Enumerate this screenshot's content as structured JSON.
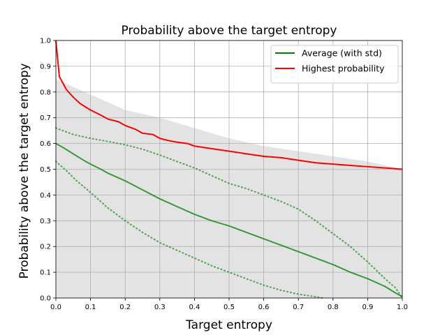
{
  "chart_data": {
    "type": "line",
    "title": "Probability above the target entropy",
    "xlabel": "Target entropy",
    "ylabel": "Probability above the target entropy",
    "xlim": [
      0,
      1
    ],
    "ylim": [
      0,
      1
    ],
    "xticks": [
      "0.0",
      "0.1",
      "0.2",
      "0.3",
      "0.4",
      "0.5",
      "0.6",
      "0.7",
      "0.8",
      "0.9",
      "1.0"
    ],
    "yticks": [
      "0.0",
      "0.1",
      "0.2",
      "0.3",
      "0.4",
      "0.5",
      "0.6",
      "0.7",
      "0.8",
      "0.9",
      "1.0"
    ],
    "grid": true,
    "legend_position": "top-right",
    "series": [
      {
        "name": "Average (with std)",
        "color": "#008000",
        "style": "solid",
        "x": [
          0.0,
          0.02,
          0.05,
          0.08,
          0.1,
          0.13,
          0.15,
          0.2,
          0.25,
          0.3,
          0.35,
          0.4,
          0.45,
          0.5,
          0.55,
          0.6,
          0.65,
          0.7,
          0.75,
          0.8,
          0.85,
          0.9,
          0.95,
          0.98,
          1.0
        ],
        "values": [
          0.6,
          0.585,
          0.56,
          0.535,
          0.52,
          0.5,
          0.485,
          0.455,
          0.42,
          0.385,
          0.355,
          0.325,
          0.3,
          0.28,
          0.255,
          0.23,
          0.205,
          0.18,
          0.155,
          0.13,
          0.1,
          0.075,
          0.045,
          0.02,
          0.005
        ]
      },
      {
        "name": "",
        "color": "#008000",
        "style": "dotted",
        "x": [
          0.0,
          0.05,
          0.1,
          0.15,
          0.2,
          0.25,
          0.3,
          0.35,
          0.4,
          0.45,
          0.5,
          0.55,
          0.6,
          0.65,
          0.7,
          0.75,
          0.8,
          0.85,
          0.9,
          0.95,
          0.98,
          1.0
        ],
        "values": [
          0.66,
          0.635,
          0.62,
          0.608,
          0.595,
          0.578,
          0.555,
          0.53,
          0.505,
          0.475,
          0.445,
          0.425,
          0.4,
          0.375,
          0.345,
          0.3,
          0.25,
          0.2,
          0.14,
          0.075,
          0.04,
          0.0
        ]
      },
      {
        "name": "",
        "color": "#008000",
        "style": "dotted",
        "x": [
          0.0,
          0.03,
          0.06,
          0.1,
          0.15,
          0.2,
          0.25,
          0.3,
          0.35,
          0.4,
          0.45,
          0.5,
          0.55,
          0.6,
          0.65,
          0.7,
          0.75,
          0.77
        ],
        "values": [
          0.53,
          0.495,
          0.455,
          0.41,
          0.35,
          0.3,
          0.255,
          0.215,
          0.185,
          0.155,
          0.125,
          0.1,
          0.075,
          0.05,
          0.03,
          0.015,
          0.005,
          0.0
        ]
      },
      {
        "name": "Highest probability",
        "color": "#ff0000",
        "style": "solid",
        "x": [
          0.0,
          0.005,
          0.01,
          0.02,
          0.03,
          0.05,
          0.07,
          0.1,
          0.13,
          0.15,
          0.18,
          0.2,
          0.23,
          0.25,
          0.28,
          0.3,
          0.33,
          0.35,
          0.38,
          0.4,
          0.45,
          0.5,
          0.55,
          0.6,
          0.65,
          0.7,
          0.75,
          0.8,
          0.85,
          0.9,
          0.95,
          1.0
        ],
        "values": [
          1.0,
          0.93,
          0.86,
          0.835,
          0.81,
          0.78,
          0.755,
          0.73,
          0.71,
          0.695,
          0.685,
          0.67,
          0.655,
          0.64,
          0.635,
          0.62,
          0.61,
          0.605,
          0.6,
          0.59,
          0.58,
          0.57,
          0.56,
          0.55,
          0.545,
          0.535,
          0.525,
          0.52,
          0.515,
          0.51,
          0.505,
          0.5
        ]
      }
    ],
    "background_band": {
      "color": "#e3e3e3",
      "x": [
        0.0,
        0.05,
        0.1,
        0.15,
        0.2,
        0.3,
        0.4,
        0.5,
        0.6,
        0.7,
        0.8,
        0.9,
        1.0
      ],
      "upper": [
        0.85,
        0.82,
        0.79,
        0.76,
        0.73,
        0.7,
        0.66,
        0.62,
        0.59,
        0.57,
        0.55,
        0.53,
        0.5
      ],
      "lower": [
        0.0,
        0.0,
        0.0,
        0.0,
        0.0,
        0.0,
        0.0,
        0.0,
        0.0,
        0.0,
        0.0,
        0.0,
        0.0
      ]
    }
  }
}
